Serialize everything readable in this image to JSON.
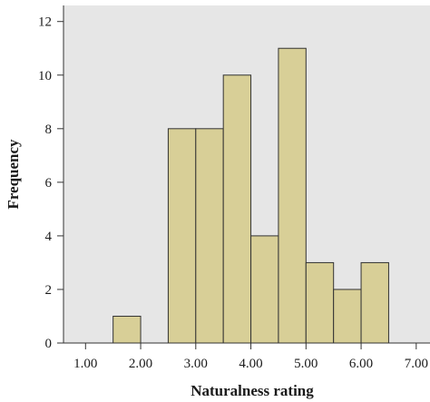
{
  "chart_data": {
    "type": "bar",
    "subtype": "histogram",
    "title": "",
    "xlabel": "Naturalness rating",
    "ylabel": "Frequency",
    "bin_width": 0.5,
    "bins": [
      {
        "start": 1.5,
        "end": 2.0,
        "value": 1
      },
      {
        "start": 2.5,
        "end": 3.0,
        "value": 8
      },
      {
        "start": 3.0,
        "end": 3.5,
        "value": 8
      },
      {
        "start": 3.5,
        "end": 4.0,
        "value": 10
      },
      {
        "start": 4.0,
        "end": 4.5,
        "value": 4
      },
      {
        "start": 4.5,
        "end": 5.0,
        "value": 11
      },
      {
        "start": 5.0,
        "end": 5.5,
        "value": 3
      },
      {
        "start": 5.5,
        "end": 6.0,
        "value": 2
      },
      {
        "start": 6.0,
        "end": 6.5,
        "value": 3
      }
    ],
    "xlim": [
      0.6,
      7.25
    ],
    "ylim": [
      0,
      12.6
    ],
    "xticks": [
      "1.00",
      "2.00",
      "3.00",
      "4.00",
      "5.00",
      "6.00",
      "7.00"
    ],
    "xtick_values": [
      1,
      2,
      3,
      4,
      5,
      6,
      7
    ],
    "yticks": [
      "0",
      "2",
      "4",
      "6",
      "8",
      "10",
      "12"
    ],
    "ytick_values": [
      0,
      2,
      4,
      6,
      8,
      10,
      12
    ],
    "grid": false,
    "colors": {
      "plot_background": "#e6e6e6",
      "bar_fill": "#d8cf97",
      "bar_stroke": "#333333",
      "axis": "#333333"
    }
  }
}
